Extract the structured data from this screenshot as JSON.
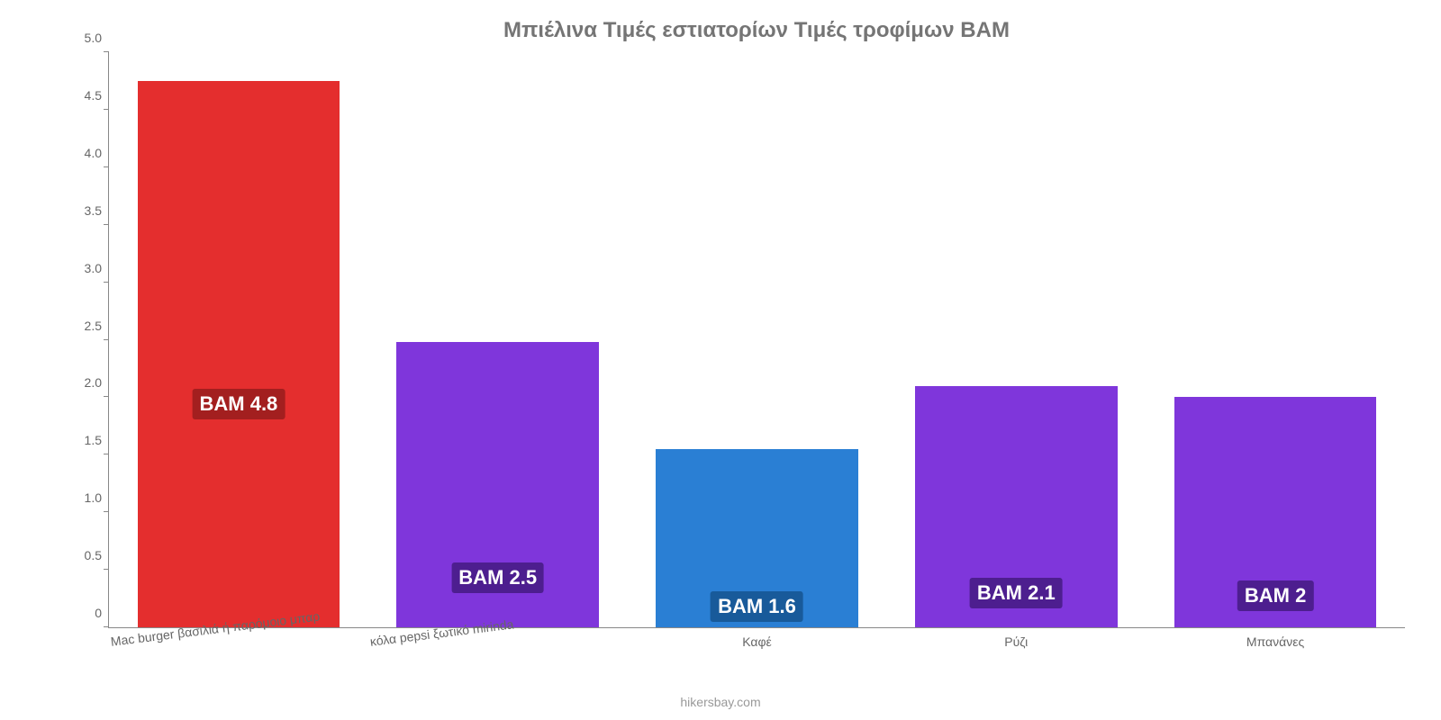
{
  "chart": {
    "type": "bar",
    "title": "Μπιέλινα Τιμές εστιατορίων Τιμές τροφίμων BAM",
    "title_color": "#757575",
    "title_fontsize": 24,
    "background_color": "#ffffff",
    "axis_color": "#888888",
    "tick_label_color": "#666666",
    "tick_fontsize": 14,
    "ylim": [
      0,
      5.0
    ],
    "ytick_step": 0.5,
    "yticks": [
      "0",
      "0.5",
      "1.0",
      "1.5",
      "2.0",
      "2.5",
      "3.0",
      "3.5",
      "4.0",
      "4.5",
      "5.0"
    ],
    "bar_width_pct": 78,
    "value_label_fontsize": 22,
    "value_label_text_color": "#ffffff",
    "categories": [
      {
        "label": "Mac burger βασιλιά ή παρόμοιο μπαρ",
        "rotated": true
      },
      {
        "label": "κόλα pepsi ξωτικό mirinda",
        "rotated": true
      },
      {
        "label": "Καφέ",
        "rotated": false
      },
      {
        "label": "Ρύζι",
        "rotated": false
      },
      {
        "label": "Μπανάνες",
        "rotated": false
      }
    ],
    "series": [
      {
        "value": 4.75,
        "display": "BAM 4.8",
        "bar_color": "#e42e2e",
        "label_bg": "#a31f1f",
        "label_bottom_pct": 38
      },
      {
        "value": 2.48,
        "display": "BAM 2.5",
        "bar_color": "#7f36db",
        "label_bg": "#4d1e8f",
        "label_bottom_pct": 12
      },
      {
        "value": 1.55,
        "display": "BAM 1.6",
        "bar_color": "#2a7fd4",
        "label_bg": "#185a9a",
        "label_bottom_pct": 3
      },
      {
        "value": 2.1,
        "display": "BAM 2.1",
        "bar_color": "#7f36db",
        "label_bg": "#4d1e8f",
        "label_bottom_pct": 8
      },
      {
        "value": 2.0,
        "display": "BAM 2",
        "bar_color": "#7f36db",
        "label_bg": "#4d1e8f",
        "label_bottom_pct": 7
      }
    ],
    "attribution": "hikersbay.com",
    "attribution_color": "#999999"
  }
}
